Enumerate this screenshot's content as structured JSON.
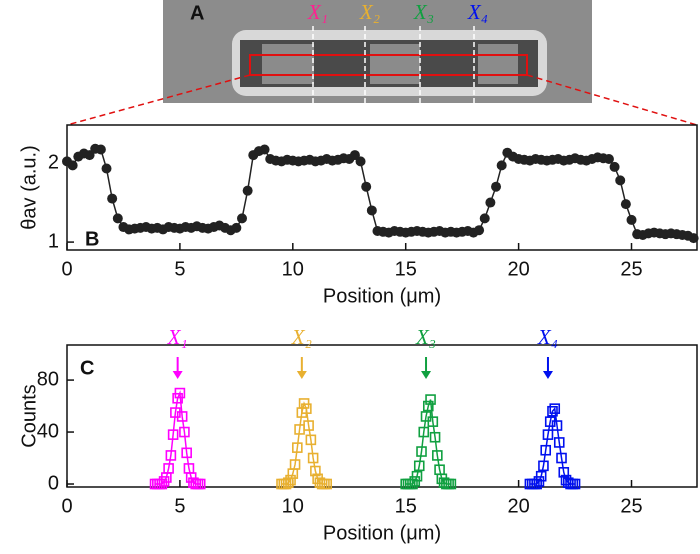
{
  "image_panel": {
    "label": "A",
    "markers": [
      "X₁",
      "X₂",
      "X₃",
      "X₄"
    ]
  },
  "chart_data": [
    {
      "type": "scatter",
      "panel_label": "B",
      "xlabel": "Position (μm)",
      "ylabel": "θav (a.u.)",
      "xlim": [
        0,
        27.9
      ],
      "xticks": [
        0,
        5,
        10,
        15,
        20,
        25
      ],
      "ylim": [
        0.9,
        2.48
      ],
      "yticks": [
        1,
        2
      ],
      "color": "#222222",
      "x": [
        0,
        0.25,
        0.5,
        0.75,
        1,
        1.25,
        1.5,
        1.75,
        2,
        2.25,
        2.5,
        2.75,
        3,
        3.25,
        3.5,
        3.75,
        4,
        4.25,
        4.5,
        4.75,
        5,
        5.25,
        5.5,
        5.75,
        6,
        6.25,
        6.5,
        6.75,
        7,
        7.25,
        7.5,
        7.75,
        8,
        8.25,
        8.5,
        8.75,
        9,
        9.25,
        9.5,
        9.75,
        10,
        10.25,
        10.5,
        10.75,
        11,
        11.25,
        11.5,
        11.75,
        12,
        12.25,
        12.5,
        12.75,
        13,
        13.25,
        13.5,
        13.75,
        14,
        14.25,
        14.5,
        14.75,
        15,
        15.25,
        15.5,
        15.75,
        16,
        16.25,
        16.5,
        16.75,
        17,
        17.25,
        17.5,
        17.75,
        18,
        18.25,
        18.5,
        18.75,
        19,
        19.25,
        19.5,
        19.75,
        20,
        20.25,
        20.5,
        20.75,
        21,
        21.25,
        21.5,
        21.75,
        22,
        22.25,
        22.5,
        22.75,
        23,
        23.25,
        23.5,
        23.75,
        24,
        24.25,
        24.5,
        24.75,
        25,
        25.25,
        25.5,
        25.75,
        26,
        26.25,
        26.5,
        26.75,
        27,
        27.25,
        27.5,
        27.75
      ],
      "values": [
        2.02,
        1.97,
        2.08,
        2.12,
        2.1,
        2.18,
        2.17,
        1.93,
        1.55,
        1.3,
        1.19,
        1.16,
        1.17,
        1.18,
        1.19,
        1.17,
        1.18,
        1.16,
        1.19,
        1.18,
        1.17,
        1.19,
        1.18,
        1.2,
        1.18,
        1.17,
        1.19,
        1.21,
        1.18,
        1.15,
        1.18,
        1.3,
        1.65,
        2.1,
        2.15,
        2.17,
        2.05,
        2.03,
        2.02,
        2.04,
        2.03,
        2.02,
        2.03,
        2.04,
        2.02,
        2.03,
        2.05,
        2.03,
        2.04,
        2.06,
        2.05,
        2.1,
        2.02,
        1.7,
        1.4,
        1.14,
        1.13,
        1.12,
        1.14,
        1.13,
        1.12,
        1.13,
        1.14,
        1.13,
        1.12,
        1.13,
        1.14,
        1.12,
        1.13,
        1.12,
        1.13,
        1.14,
        1.12,
        1.15,
        1.3,
        1.5,
        1.7,
        1.97,
        2.13,
        2.08,
        2.05,
        2.04,
        2.03,
        2.05,
        2.04,
        2.03,
        2.04,
        2.05,
        2.03,
        2.04,
        2.06,
        2.04,
        2.03,
        2.05,
        2.07,
        2.06,
        2.05,
        1.95,
        1.78,
        1.48,
        1.28,
        1.1,
        1.09,
        1.11,
        1.12,
        1.11,
        1.1,
        1.11,
        1.1,
        1.09,
        1.08,
        1.05
      ]
    },
    {
      "type": "scatter",
      "panel_label": "C",
      "xlabel": "Position (μm)",
      "ylabel": "Counts",
      "xlim": [
        0,
        27.9
      ],
      "xticks": [
        0,
        5,
        10,
        15,
        20,
        25
      ],
      "ylim": [
        -2.3,
        107
      ],
      "yticks": [
        0,
        40,
        80
      ],
      "series": [
        {
          "name": "X₁",
          "color": "#ff00ff",
          "marker_x": 4.9,
          "x": [
            3.9,
            4,
            4.1,
            4.2,
            4.3,
            4.4,
            4.5,
            4.6,
            4.7,
            4.8,
            4.9,
            5,
            5.1,
            5.2,
            5.3,
            5.4,
            5.5,
            5.6,
            5.7,
            5.8,
            5.9
          ],
          "values": [
            0,
            0,
            0,
            0,
            2,
            5,
            12,
            22,
            38,
            55,
            66,
            70,
            52,
            40,
            24,
            12,
            5,
            1,
            0,
            0,
            0
          ]
        },
        {
          "name": "X₂",
          "color": "#e8b030",
          "marker_x": 10.4,
          "x": [
            9.5,
            9.6,
            9.7,
            9.8,
            9.9,
            10,
            10.1,
            10.2,
            10.3,
            10.4,
            10.5,
            10.6,
            10.7,
            10.8,
            10.9,
            11,
            11.1,
            11.2,
            11.3,
            11.4,
            11.5
          ],
          "values": [
            0,
            0,
            0,
            1,
            3,
            8,
            15,
            28,
            42,
            55,
            62,
            58,
            45,
            34,
            20,
            10,
            4,
            1,
            0,
            0,
            0
          ]
        },
        {
          "name": "X₃",
          "color": "#10a040",
          "marker_x": 15.9,
          "x": [
            15,
            15.1,
            15.2,
            15.3,
            15.4,
            15.5,
            15.6,
            15.7,
            15.8,
            15.9,
            16,
            16.1,
            16.2,
            16.3,
            16.4,
            16.5,
            16.6,
            16.7,
            16.8,
            16.9,
            17
          ],
          "values": [
            0,
            0,
            0,
            0,
            2,
            6,
            14,
            25,
            40,
            52,
            60,
            65,
            48,
            36,
            22,
            11,
            4,
            1,
            0,
            0,
            0
          ]
        },
        {
          "name": "X₄",
          "color": "#0010ee",
          "marker_x": 21.3,
          "x": [
            20.5,
            20.6,
            20.7,
            20.8,
            20.9,
            21,
            21.1,
            21.2,
            21.3,
            21.4,
            21.5,
            21.6,
            21.7,
            21.8,
            21.9,
            22,
            22.1,
            22.2,
            22.3,
            22.4,
            22.5
          ],
          "values": [
            0,
            0,
            0,
            0,
            2,
            6,
            14,
            26,
            38,
            48,
            56,
            58,
            45,
            32,
            20,
            9,
            3,
            1,
            0,
            0,
            0
          ]
        }
      ]
    }
  ]
}
